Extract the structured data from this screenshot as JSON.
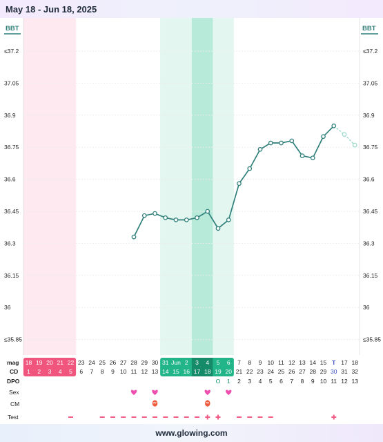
{
  "header": {
    "title": "May 18 - Jun 18, 2025"
  },
  "footer": {
    "url": "www.glowing.com"
  },
  "labels": {
    "bbt_left": "BBT",
    "bbt_right": "BBT",
    "row_mag": "mag",
    "row_cd": "CD",
    "row_dpo": "DPO",
    "row_sex": "Sex",
    "row_cm": "CM",
    "row_test": "Test"
  },
  "colors": {
    "period": "#fde9ef",
    "period_cell": "#f0567d",
    "fertile_light": "#e3f6ef",
    "fertile_dark": "#b8ead9",
    "fertile_cell": "#22b58a",
    "fertile_cell_dark": "#168b6a",
    "line": "#2f7f7a",
    "predicted": "#9fd9cc",
    "heart": "#ee4fb0",
    "test_mark": "#ef5d85",
    "today": "#3b4fc4"
  },
  "chart_data": {
    "type": "line",
    "title": "",
    "xlabel": "",
    "ylabel": "BBT",
    "ylim": [
      35.85,
      37.2
    ],
    "yticks": [
      "≤37.2",
      "37.05",
      "36.9",
      "36.75",
      "36.6",
      "36.45",
      "36.3",
      "36.15",
      "36",
      "≤35.85"
    ],
    "ytick_values": [
      37.2,
      37.05,
      36.9,
      36.75,
      36.6,
      36.45,
      36.3,
      36.15,
      36.0,
      35.85
    ],
    "mag": [
      "18",
      "19",
      "20",
      "21",
      "22",
      "23",
      "24",
      "25",
      "26",
      "27",
      "28",
      "29",
      "30",
      "31",
      "Jun",
      "2",
      "3",
      "4",
      "5",
      "6",
      "7",
      "8",
      "9",
      "10",
      "11",
      "12",
      "13",
      "14",
      "15",
      "T",
      "17",
      "18"
    ],
    "cd": [
      "1",
      "2",
      "3",
      "4",
      "5",
      "6",
      "7",
      "8",
      "9",
      "10",
      "11",
      "12",
      "13",
      "14",
      "15",
      "16",
      "17",
      "18",
      "19",
      "20",
      "21",
      "22",
      "23",
      "24",
      "25",
      "26",
      "27",
      "28",
      "29",
      "30",
      "31",
      "32"
    ],
    "dpo": [
      "",
      "",
      "",
      "",
      "",
      "",
      "",
      "",
      "",
      "",
      "",
      "",
      "",
      "",
      "",
      "",
      "",
      "",
      "O",
      "1",
      "2",
      "3",
      "4",
      "5",
      "6",
      "7",
      "8",
      "9",
      "10",
      "11",
      "12",
      "13"
    ],
    "series": [
      {
        "values": [
          null,
          null,
          null,
          null,
          null,
          null,
          null,
          null,
          null,
          null,
          36.33,
          36.43,
          36.44,
          36.42,
          36.41,
          36.41,
          36.42,
          36.45,
          36.37,
          36.41,
          36.58,
          36.65,
          36.74,
          36.77,
          36.77,
          36.78,
          36.71,
          36.7,
          36.8,
          36.85,
          null,
          null
        ]
      },
      {
        "values": [
          null,
          null,
          null,
          null,
          null,
          null,
          null,
          null,
          null,
          null,
          null,
          null,
          null,
          null,
          null,
          null,
          null,
          null,
          null,
          null,
          null,
          null,
          null,
          null,
          null,
          null,
          null,
          null,
          null,
          36.85,
          36.81,
          36.76
        ]
      }
    ],
    "period_days": [
      0,
      4
    ],
    "fertile_days": [
      13,
      19
    ],
    "peak_days": [
      16,
      17
    ],
    "today_index": 29,
    "sex_days": [
      10,
      12,
      17,
      19
    ],
    "cm_days": [
      12,
      17
    ],
    "test_negative_days": [
      4,
      7,
      8,
      9,
      10,
      11,
      12,
      13,
      14,
      15,
      16,
      20,
      21,
      22,
      23
    ],
    "test_positive_days": [
      17,
      18,
      29
    ],
    "grid": true,
    "legend": "none"
  }
}
